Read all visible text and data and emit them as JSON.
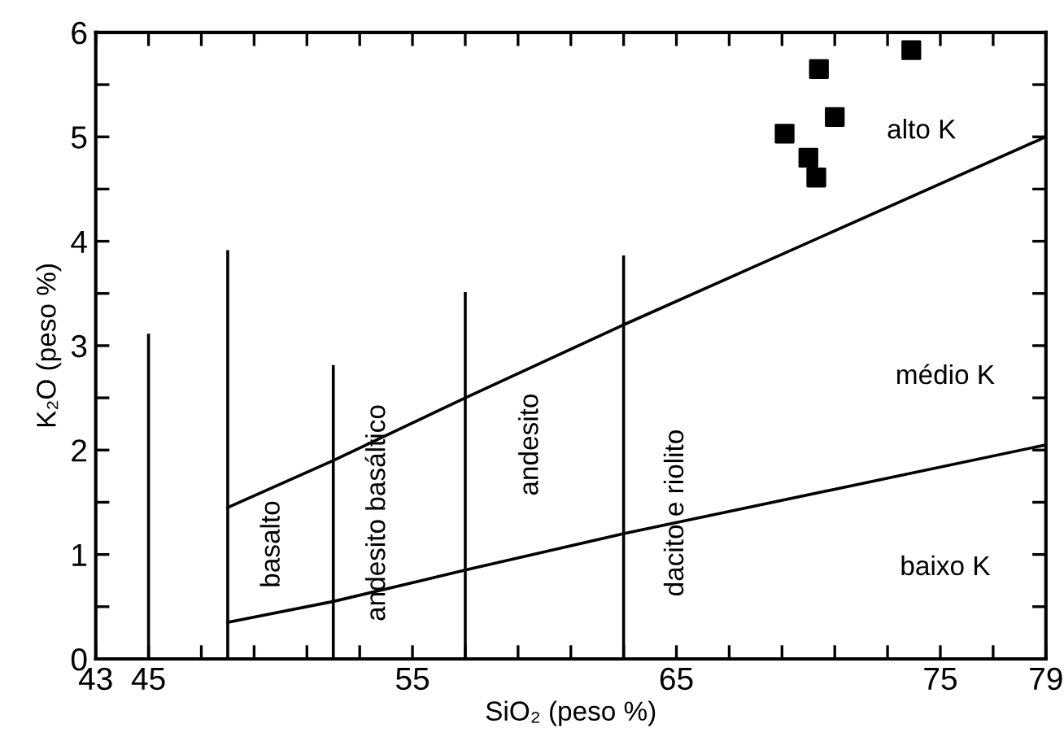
{
  "chart_data": {
    "type": "line",
    "xlabel": "SiO₂ (peso %)",
    "ylabel": "K₂O (peso %)",
    "xlim": [
      43,
      79
    ],
    "ylim": [
      0,
      6
    ],
    "xticks": [
      43,
      45,
      {
        "value": 47,
        "label": null
      },
      {
        "value": 49,
        "label": null
      },
      {
        "value": 51,
        "label": null
      },
      {
        "value": 53,
        "label": null
      },
      55,
      {
        "value": 57,
        "label": null
      },
      {
        "value": 59,
        "label": null
      },
      {
        "value": 61,
        "label": null
      },
      {
        "value": 63,
        "label": null
      },
      65,
      {
        "value": 67,
        "label": null
      },
      {
        "value": 69,
        "label": null
      },
      {
        "value": 71,
        "label": null
      },
      {
        "value": 73,
        "label": null
      },
      75,
      {
        "value": 77,
        "label": null
      },
      79
    ],
    "yticks": [
      0,
      {
        "value": 0.5,
        "label": null
      },
      1,
      {
        "value": 1.5,
        "label": null
      },
      2,
      {
        "value": 2.5,
        "label": null
      },
      3,
      {
        "value": 3.5,
        "label": null
      },
      4,
      {
        "value": 4.5,
        "label": null
      },
      5,
      {
        "value": 5.5,
        "label": null
      },
      6
    ],
    "grid": false,
    "legend": false,
    "series": [
      {
        "color": "#000000",
        "x": [
          45,
          45
        ],
        "values": [
          0,
          3.1
        ]
      },
      {
        "color": "#000000",
        "x": [
          48,
          48
        ],
        "values": [
          0,
          3.9
        ]
      },
      {
        "color": "#000000",
        "x": [
          52,
          52
        ],
        "values": [
          0,
          2.8
        ]
      },
      {
        "color": "#000000",
        "x": [
          57,
          57
        ],
        "values": [
          0,
          3.5
        ]
      },
      {
        "color": "#000000",
        "x": [
          63,
          63
        ],
        "values": [
          0,
          3.85
        ]
      },
      {
        "color": "#000000",
        "x": [
          48,
          52,
          57,
          63,
          79
        ],
        "values": [
          1.45,
          1.9,
          2.5,
          3.2,
          5.0
        ]
      },
      {
        "color": "#000000",
        "x": [
          48,
          52,
          57,
          63,
          79
        ],
        "values": [
          0.35,
          0.55,
          0.85,
          1.2,
          2.05
        ]
      },
      {
        "type": "scatter",
        "color": "#000000",
        "marker": "square",
        "x": [
          73.9,
          70.4,
          71.0,
          69.1,
          70.0,
          70.3
        ],
        "values": [
          5.83,
          5.65,
          5.19,
          5.03,
          4.8,
          4.61
        ]
      }
    ],
    "annotations": [
      "basalto",
      "andesito basáltico",
      "andesito",
      "dacito e riolito",
      "alto K",
      "médio K",
      "baixo K"
    ]
  }
}
